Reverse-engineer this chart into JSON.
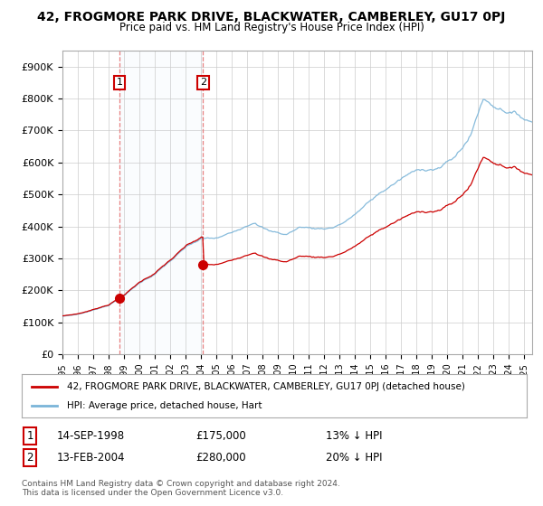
{
  "title": "42, FROGMORE PARK DRIVE, BLACKWATER, CAMBERLEY, GU17 0PJ",
  "subtitle": "Price paid vs. HM Land Registry's House Price Index (HPI)",
  "hpi_label": "HPI: Average price, detached house, Hart",
  "price_label": "42, FROGMORE PARK DRIVE, BLACKWATER, CAMBERLEY, GU17 0PJ (detached house)",
  "hpi_color": "#7ab4d8",
  "hpi_fill_color": "#ddeef7",
  "price_color": "#cc0000",
  "marker_color": "#cc0000",
  "sale1_date_num": 1998.71,
  "sale1_price": 175000,
  "sale2_date_num": 2004.12,
  "sale2_price": 280000,
  "copyright": "Contains HM Land Registry data © Crown copyright and database right 2024.\nThis data is licensed under the Open Government Licence v3.0.",
  "ylim": [
    0,
    950000
  ],
  "xlim_start": 1995.0,
  "xlim_end": 2025.5,
  "yticks": [
    0,
    100000,
    200000,
    300000,
    400000,
    500000,
    600000,
    700000,
    800000,
    900000
  ],
  "ytick_labels": [
    "£0",
    "£100K",
    "£200K",
    "£300K",
    "£400K",
    "£500K",
    "£600K",
    "£700K",
    "£800K",
    "£900K"
  ],
  "xtick_years": [
    1995,
    1996,
    1997,
    1998,
    1999,
    2000,
    2001,
    2002,
    2003,
    2004,
    2005,
    2006,
    2007,
    2008,
    2009,
    2010,
    2011,
    2012,
    2013,
    2014,
    2015,
    2016,
    2017,
    2018,
    2019,
    2020,
    2021,
    2022,
    2023,
    2024,
    2025
  ],
  "background_color": "#ffffff",
  "grid_color": "#cccccc"
}
